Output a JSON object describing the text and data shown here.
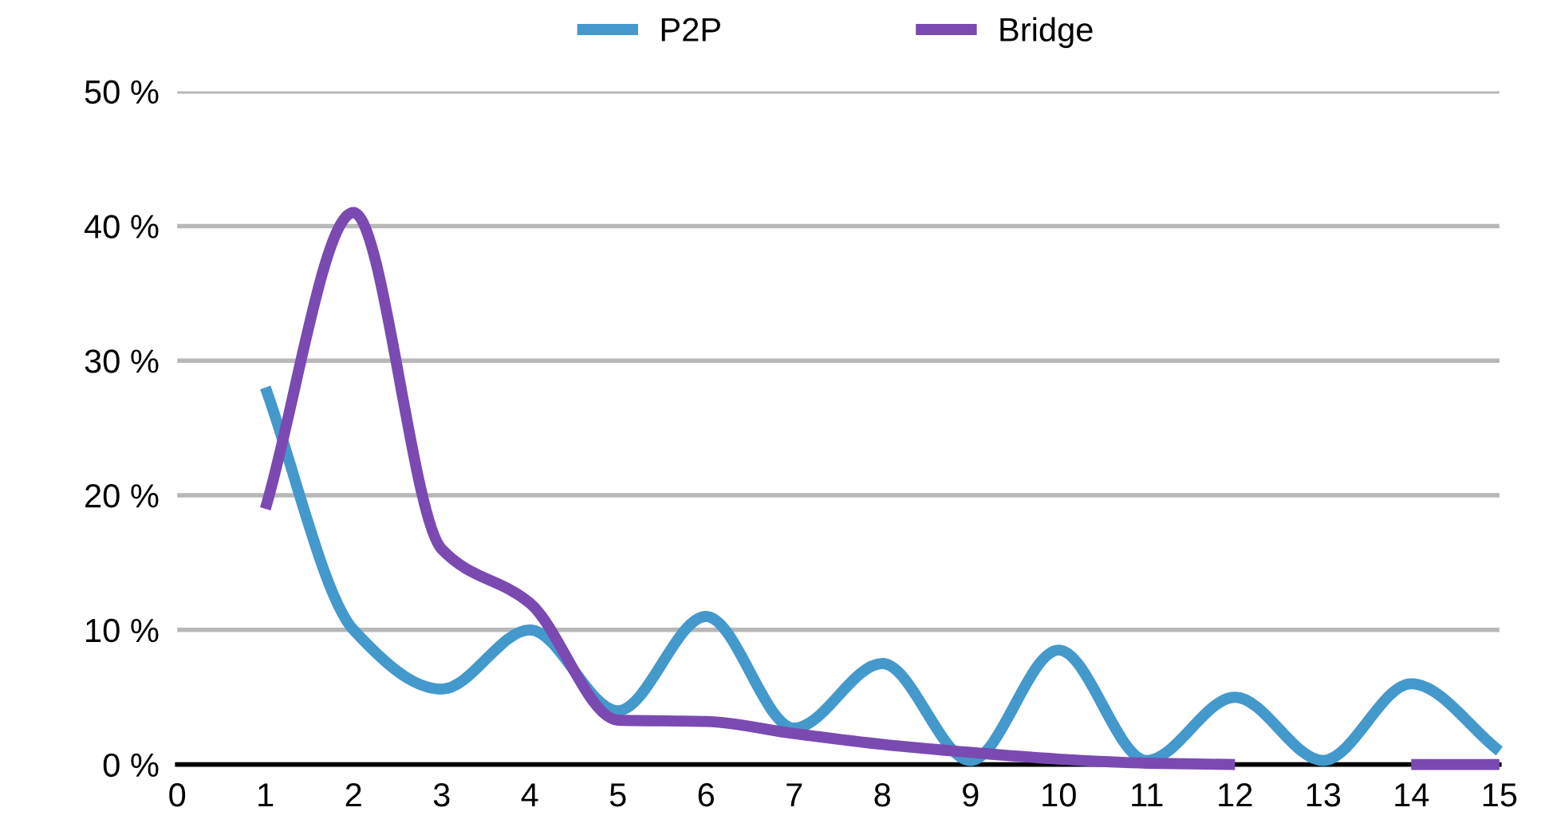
{
  "chart_data": {
    "type": "line",
    "x": [
      1,
      2,
      3,
      4,
      5,
      6,
      7,
      8,
      9,
      10,
      11,
      12,
      13,
      14,
      15
    ],
    "series": [
      {
        "name": "P2P",
        "color": "#4499cc",
        "values": [
          28,
          10,
          5.6,
          10,
          4,
          11,
          2.7,
          7.5,
          0.3,
          8.5,
          0.3,
          5,
          0.3,
          6,
          1
        ]
      },
      {
        "name": "Bridge",
        "color": "#7a4ab2",
        "values": [
          19,
          41,
          16,
          12,
          3.3,
          3.2,
          2.3,
          1.5,
          0.9,
          0.4,
          0.1,
          0,
          null,
          0,
          0
        ]
      }
    ],
    "xlim": [
      0,
      15
    ],
    "xticks": [
      0,
      1,
      2,
      3,
      4,
      5,
      6,
      7,
      8,
      9,
      10,
      11,
      12,
      13,
      14,
      15
    ],
    "ylim": [
      0,
      50
    ],
    "yticks": [
      {
        "value": 0,
        "label": "0 %"
      },
      {
        "value": 10,
        "label": "10 %"
      },
      {
        "value": 20,
        "label": "20 %"
      },
      {
        "value": 30,
        "label": "30 %"
      },
      {
        "value": 40,
        "label": "40 %"
      },
      {
        "value": 50,
        "label": "50 %"
      }
    ],
    "grid": "y",
    "legend": "top",
    "marker": "none",
    "line_style": "solid"
  }
}
